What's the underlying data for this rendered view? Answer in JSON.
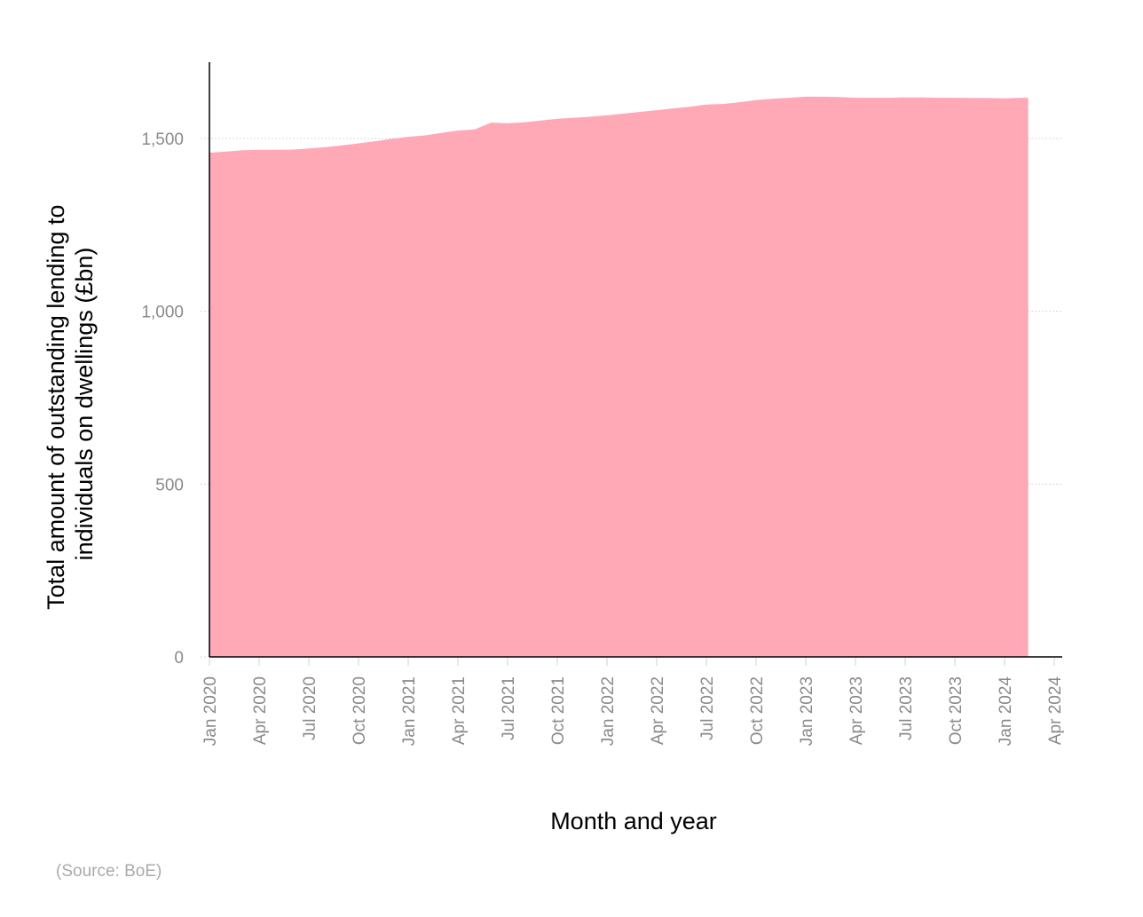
{
  "chart_data": {
    "type": "area",
    "title": "",
    "xlabel": "Month and year",
    "ylabel": "Total amount of outstanding lending to individuals on dwellings (£bn)",
    "ylabel_lines": [
      "Total amount of outstanding lending to",
      "individuals on dwellings (£bn)"
    ],
    "ylim": [
      0,
      1720
    ],
    "yticks": [
      0,
      500,
      1000,
      1500
    ],
    "ytick_labels": [
      "0",
      "500",
      "1,000",
      "1,500"
    ],
    "xtick_labels": [
      "Jan 2020",
      "Apr 2020",
      "Jul 2020",
      "Oct 2020",
      "Jan 2021",
      "Apr 2021",
      "Jul 2021",
      "Oct 2021",
      "Jan 2022",
      "Apr 2022",
      "Jul 2022",
      "Oct 2022",
      "Jan 2023",
      "Apr 2023",
      "Jul 2023",
      "Oct 2023",
      "Jan 2024",
      "Apr 2024"
    ],
    "grid": "horizontal dotted",
    "legend": "none",
    "color": "#ffa9b7",
    "x": [
      "Jan 2020",
      "Feb 2020",
      "Mar 2020",
      "Apr 2020",
      "May 2020",
      "Jun 2020",
      "Jul 2020",
      "Aug 2020",
      "Sep 2020",
      "Oct 2020",
      "Nov 2020",
      "Dec 2020",
      "Jan 2021",
      "Feb 2021",
      "Mar 2021",
      "Apr 2021",
      "May 2021",
      "Jun 2021",
      "Jul 2021",
      "Aug 2021",
      "Sep 2021",
      "Oct 2021",
      "Nov 2021",
      "Dec 2021",
      "Jan 2022",
      "Feb 2022",
      "Mar 2022",
      "Apr 2022",
      "May 2022",
      "Jun 2022",
      "Jul 2022",
      "Aug 2022",
      "Sep 2022",
      "Oct 2022",
      "Nov 2022",
      "Dec 2022",
      "Jan 2023",
      "Feb 2023",
      "Mar 2023",
      "Apr 2023",
      "May 2023",
      "Jun 2023",
      "Jul 2023",
      "Aug 2023",
      "Sep 2023",
      "Oct 2023",
      "Nov 2023",
      "Dec 2023",
      "Jan 2024",
      "Feb 2024"
    ],
    "values": [
      1459,
      1462,
      1466,
      1467,
      1467,
      1468,
      1471,
      1475,
      1480,
      1486,
      1492,
      1499,
      1505,
      1509,
      1516,
      1523,
      1526,
      1546,
      1544,
      1547,
      1552,
      1557,
      1560,
      1563,
      1567,
      1572,
      1577,
      1582,
      1587,
      1592,
      1598,
      1600,
      1605,
      1611,
      1615,
      1618,
      1621,
      1621,
      1620,
      1618,
      1618,
      1618,
      1619,
      1619,
      1618,
      1618,
      1617,
      1617,
      1616,
      1618
    ]
  },
  "source": "(Source: BoE)"
}
